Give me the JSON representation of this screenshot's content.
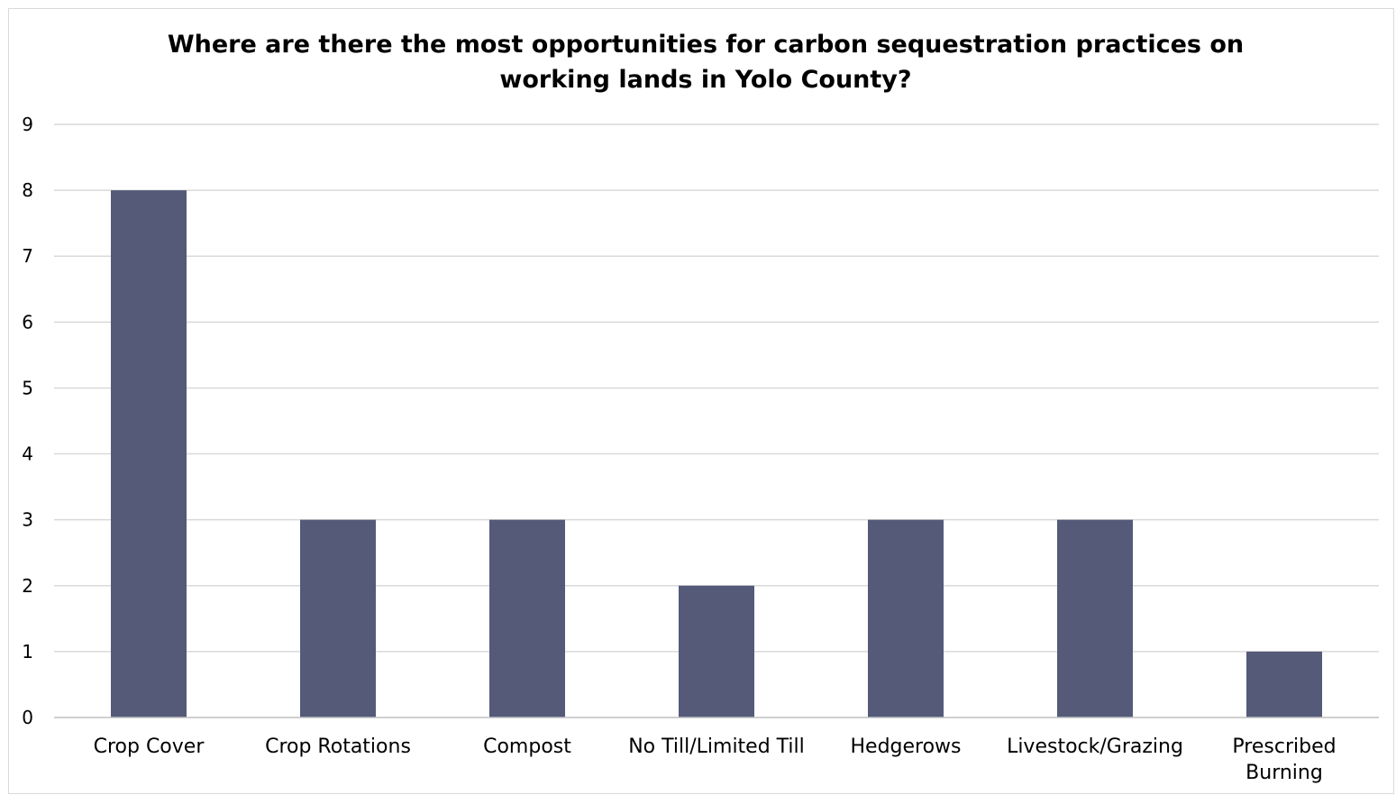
{
  "chart_data": {
    "type": "bar",
    "title": "Where are there the most opportunities for carbon sequestration practices on\nworking lands in Yolo County?",
    "categories": [
      "Crop Cover",
      "Crop Rotations",
      "Compost",
      "No Till/Limited Till",
      "Hedgerows",
      "Livestock/Grazing",
      "Prescribed\nBurning"
    ],
    "values": [
      8,
      3,
      3,
      2,
      3,
      3,
      1
    ],
    "xlabel": "",
    "ylabel": "",
    "ylim": [
      0,
      9
    ],
    "yticks": [
      0,
      1,
      2,
      3,
      4,
      5,
      6,
      7,
      8,
      9
    ],
    "grid": true,
    "legend": "none",
    "colors": {
      "bar": "#545a78",
      "grid": "#d9d9d9",
      "axis": "#bfbfbf"
    }
  }
}
